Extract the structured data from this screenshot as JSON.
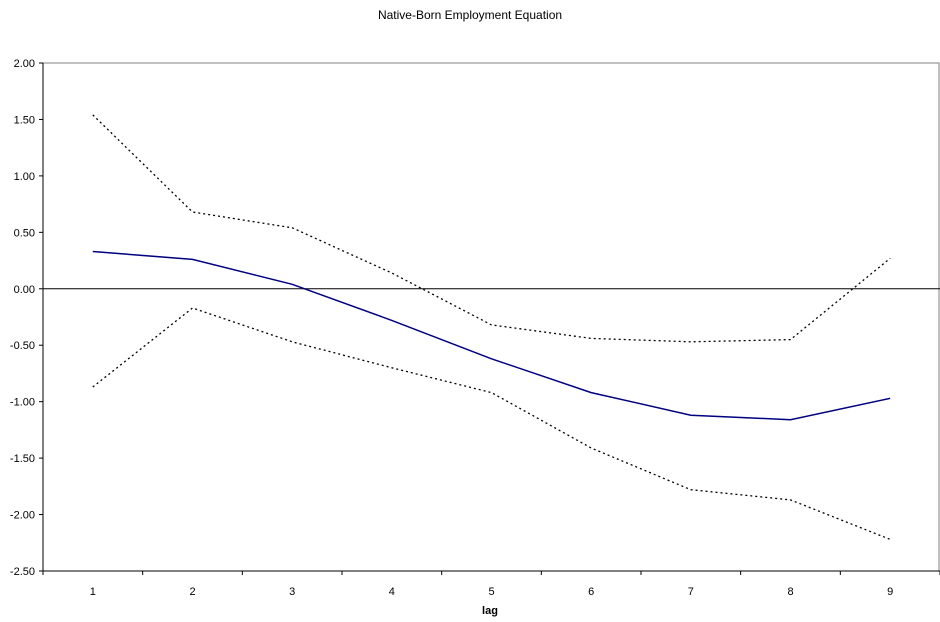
{
  "chart_data": {
    "type": "line",
    "title": "Native-Born Employment Equation",
    "xlabel": "lag",
    "ylabel": "",
    "x": [
      1,
      2,
      3,
      4,
      5,
      6,
      7,
      8,
      9
    ],
    "ylim": [
      -2.5,
      2.0
    ],
    "yticks": [
      "2.00",
      "1.50",
      "1.00",
      "0.50",
      "0.00",
      "-0.50",
      "-1.00",
      "-1.50",
      "-2.00",
      "-2.50"
    ],
    "grid": false,
    "legend": "none",
    "series": [
      {
        "values": [
          0.33,
          0.26,
          0.04,
          -0.28,
          -0.62,
          -0.92,
          -1.12,
          -1.16,
          -0.97
        ],
        "color": "#000080",
        "style": "solid"
      },
      {
        "values": [
          1.54,
          0.68,
          0.54,
          0.14,
          -0.32,
          -0.44,
          -0.47,
          -0.45,
          0.27
        ],
        "color": "#000000",
        "style": "dotted"
      },
      {
        "values": [
          -0.87,
          -0.17,
          -0.47,
          -0.7,
          -0.92,
          -1.41,
          -1.78,
          -1.87,
          -2.22
        ],
        "color": "#000000",
        "style": "dotted"
      }
    ]
  }
}
